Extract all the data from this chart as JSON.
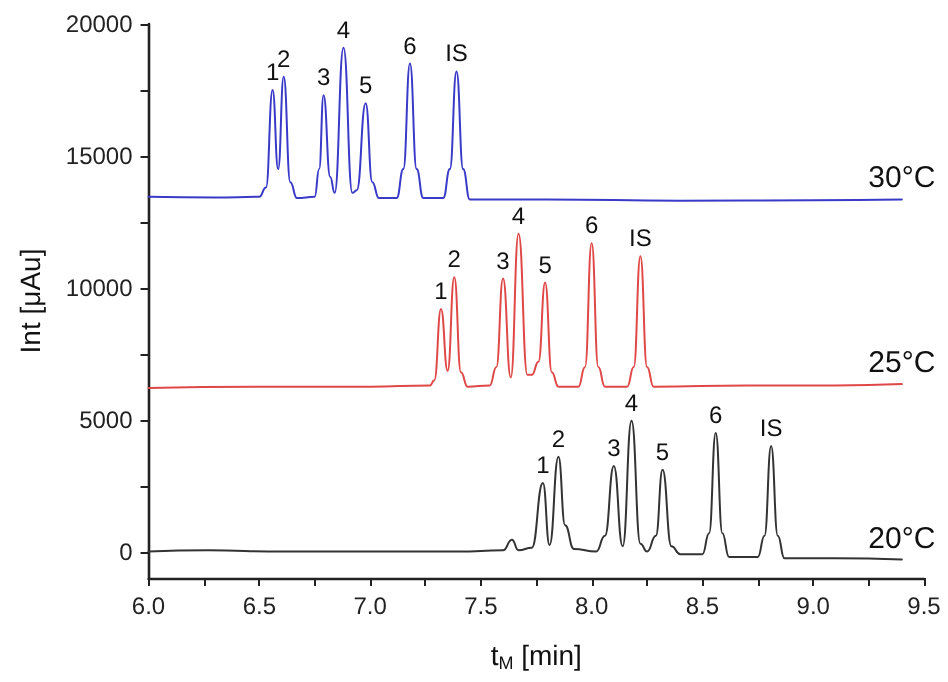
{
  "chart_data": {
    "type": "line",
    "xlabel": "t$_{M}$ [min]",
    "ylabel": "Int [μAu]",
    "xlim": [
      6.0,
      9.5
    ],
    "xticks": [
      {
        "value": 6,
        "label": "6.0"
      },
      {
        "value": 6.25,
        "label": null
      },
      {
        "value": 6.5,
        "label": "6.5"
      },
      {
        "value": 6.75,
        "label": null
      },
      {
        "value": 7,
        "label": "7.0"
      },
      {
        "value": 7.25,
        "label": null
      },
      {
        "value": 7.5,
        "label": "7.5"
      },
      {
        "value": 7.75,
        "label": null
      },
      {
        "value": 8,
        "label": "8.0"
      },
      {
        "value": 8.25,
        "label": null
      },
      {
        "value": 8.5,
        "label": "8.5"
      },
      {
        "value": 8.75,
        "label": null
      },
      {
        "value": 9,
        "label": "9.0"
      },
      {
        "value": 9.25,
        "label": null
      },
      {
        "value": 9.5,
        "label": "9.5"
      }
    ],
    "ylim": [
      -1000,
      20000
    ],
    "yticks": [
      0,
      {
        "value": 2500,
        "label": null
      },
      5000,
      {
        "value": 7500,
        "label": null
      },
      10000,
      {
        "value": 12500,
        "label": null
      },
      15000,
      {
        "value": 17500,
        "label": null
      },
      20000
    ],
    "grid": false,
    "marker": "none",
    "line_style": "solid",
    "series": [
      {
        "color": "#3a3ac8",
        "x": [
          6.0,
          6.3,
          6.5,
          6.53,
          6.56,
          6.585,
          6.61,
          6.64,
          6.67,
          6.75,
          6.77,
          6.79,
          6.82,
          6.84,
          6.88,
          6.92,
          6.94,
          6.98,
          7.01,
          7.04,
          7.12,
          7.15,
          7.18,
          7.21,
          7.24,
          7.33,
          7.36,
          7.39,
          7.42,
          7.45,
          7.8,
          8.4,
          9.0,
          9.4
        ],
        "values": [
          13450,
          13420,
          13450,
          13800,
          17500,
          14500,
          18000,
          14000,
          13400,
          13450,
          14500,
          17300,
          14200,
          13600,
          19100,
          13600,
          13700,
          17000,
          14000,
          13400,
          13400,
          14500,
          18500,
          14500,
          13400,
          13400,
          14500,
          18200,
          14500,
          13350,
          13350,
          13300,
          13320,
          13350
        ]
      },
      {
        "color": "#e04848",
        "x": [
          6.0,
          6.5,
          7.0,
          7.27,
          7.29,
          7.32,
          7.35,
          7.38,
          7.41,
          7.44,
          7.54,
          7.57,
          7.6,
          7.635,
          7.67,
          7.71,
          7.73,
          7.76,
          7.79,
          7.82,
          7.85,
          7.94,
          7.97,
          8.0,
          8.03,
          8.06,
          8.16,
          8.19,
          8.22,
          8.25,
          8.28,
          8.7,
          9.1,
          9.4
        ],
        "values": [
          6200,
          6250,
          6250,
          6300,
          6500,
          9200,
          6850,
          10400,
          6800,
          6250,
          6300,
          7000,
          10350,
          6600,
          12050,
          6700,
          6700,
          7200,
          10200,
          6800,
          6250,
          6250,
          7000,
          11700,
          7000,
          6250,
          6250,
          7000,
          11200,
          7000,
          6250,
          6300,
          6300,
          6350
        ]
      },
      {
        "color": "#333333",
        "x": [
          6.0,
          6.27,
          6.6,
          7.0,
          7.4,
          7.6,
          7.64,
          7.67,
          7.73,
          7.78,
          7.81,
          7.85,
          7.88,
          7.92,
          8.02,
          8.06,
          8.1,
          8.14,
          8.18,
          8.22,
          8.25,
          8.29,
          8.32,
          8.36,
          8.4,
          8.5,
          8.53,
          8.56,
          8.59,
          8.62,
          8.75,
          8.78,
          8.81,
          8.84,
          8.87,
          9.1,
          9.4
        ],
        "values": [
          0,
          50,
          0,
          0,
          0,
          50,
          450,
          50,
          150,
          2600,
          250,
          3600,
          1000,
          100,
          0,
          600,
          3250,
          200,
          4960,
          300,
          0,
          600,
          3100,
          200,
          -100,
          -100,
          700,
          4500,
          700,
          -200,
          -200,
          600,
          4000,
          600,
          -250,
          -250,
          -300
        ]
      }
    ],
    "annotations": [
      {
        "text": "1",
        "x": 6.56,
        "y": 17500
      },
      {
        "text": "2",
        "x": 6.61,
        "y": 18000
      },
      {
        "text": "3",
        "x": 6.79,
        "y": 17300
      },
      {
        "text": "4",
        "x": 6.88,
        "y": 19100
      },
      {
        "text": "5",
        "x": 6.98,
        "y": 17000
      },
      {
        "text": "6",
        "x": 7.18,
        "y": 18500
      },
      {
        "text": "IS",
        "x": 7.39,
        "y": 18200
      },
      {
        "text": "1",
        "x": 7.32,
        "y": 9200
      },
      {
        "text": "2",
        "x": 7.38,
        "y": 10400
      },
      {
        "text": "3",
        "x": 7.6,
        "y": 10350
      },
      {
        "text": "4",
        "x": 7.67,
        "y": 12050
      },
      {
        "text": "5",
        "x": 7.79,
        "y": 10200
      },
      {
        "text": "6",
        "x": 8.0,
        "y": 11700
      },
      {
        "text": "IS",
        "x": 8.22,
        "y": 11200
      },
      {
        "text": "1",
        "x": 7.78,
        "y": 2600
      },
      {
        "text": "2",
        "x": 7.85,
        "y": 3600
      },
      {
        "text": "3",
        "x": 8.1,
        "y": 3250
      },
      {
        "text": "4",
        "x": 8.18,
        "y": 4960
      },
      {
        "text": "5",
        "x": 8.32,
        "y": 3100
      },
      {
        "text": "6",
        "x": 8.56,
        "y": 4500
      },
      {
        "text": "IS",
        "x": 8.81,
        "y": 4000
      },
      {
        "text": "30°C",
        "x": 9.4,
        "y": 13350
      },
      {
        "text": "25°C",
        "x": 9.4,
        "y": 6350
      },
      {
        "text": "20°C",
        "x": 9.4,
        "y": -300
      }
    ]
  }
}
